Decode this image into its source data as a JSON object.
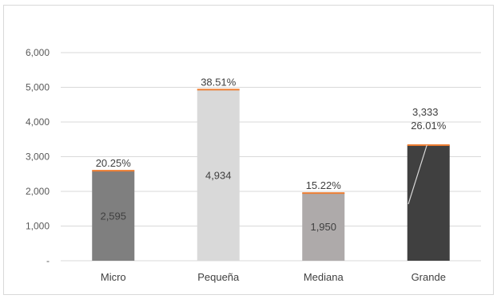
{
  "chart_data": {
    "type": "bar",
    "categories": [
      "Micro",
      "Pequeña",
      "Mediana",
      "Grande"
    ],
    "values": [
      2595,
      4934,
      1950,
      3333
    ],
    "value_labels": [
      "2,595",
      "4,934",
      "1,950",
      "3,333"
    ],
    "percent_labels": [
      "20.25%",
      "38.51%",
      "15.22%",
      "26.01%"
    ],
    "bar_colors": [
      "#7f7f7f",
      "#d9d9d9",
      "#aeaaaa",
      "#404040"
    ],
    "cap_color": "#ed7d31",
    "ylim": [
      0,
      6000
    ],
    "y_ticks": [
      {
        "value": 0,
        "label": "-"
      },
      {
        "value": 1000,
        "label": "1,000"
      },
      {
        "value": 2000,
        "label": "2,000"
      },
      {
        "value": 3000,
        "label": "3,000"
      },
      {
        "value": 4000,
        "label": "4,000"
      },
      {
        "value": 5000,
        "label": "5,000"
      },
      {
        "value": 6000,
        "label": "6,000"
      }
    ],
    "grid": true,
    "gridline_color": "#d9d9d9",
    "title": "",
    "xlabel": "",
    "ylabel": ""
  }
}
